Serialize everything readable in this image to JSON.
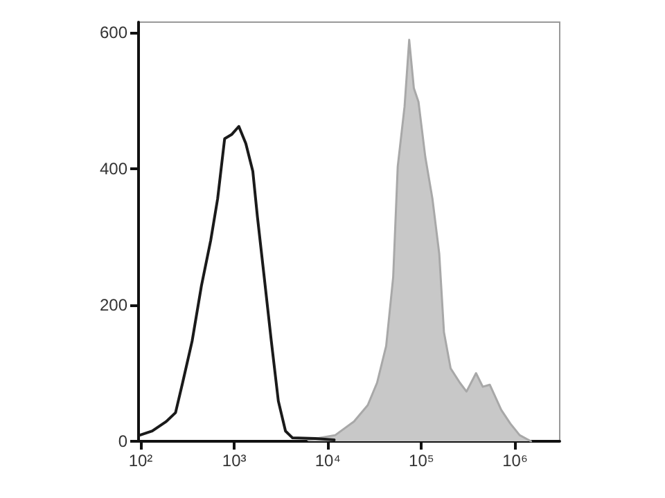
{
  "chart_data": {
    "type": "line",
    "log": "x",
    "grid": false,
    "marker": "none",
    "xlim": [
      95,
      3000000
    ],
    "xticks": [
      {
        "value": 100,
        "label": "10²"
      },
      {
        "value": 1000,
        "label": "10³"
      },
      {
        "value": 10000,
        "label": "10⁴"
      },
      {
        "value": 100000,
        "label": "10⁵"
      },
      {
        "value": 1000000,
        "label": "10⁶"
      }
    ],
    "ylim": [
      0,
      615
    ],
    "yticks": [
      0,
      200,
      400,
      600
    ],
    "series": [
      {
        "color": "#1a1a1a",
        "x": [
          98,
          133,
          188,
          236,
          281,
          355,
          446,
          561,
          665,
          790,
          937,
          1120,
          1330,
          1580,
          1770,
          2090,
          2490,
          2960,
          3530,
          4200,
          7400,
          11700
        ],
        "values": [
          9,
          15,
          29,
          42,
          86,
          147,
          228,
          295,
          356,
          444,
          450,
          462,
          437,
          396,
          329,
          241,
          147,
          59,
          15,
          5,
          4,
          2
        ]
      },
      {
        "type": "area",
        "color": "#c8c8c8",
        "x": [
          6150,
          12000,
          19000,
          26700,
          33600,
          42000,
          49900,
          55800,
          66000,
          74000,
          83000,
          93000,
          110000,
          131000,
          155000,
          174000,
          205000,
          257000,
          303000,
          383000,
          452000,
          537000,
          712000,
          890000,
          1120000,
          1480000
        ],
        "values": [
          2,
          9,
          29,
          53,
          86,
          140,
          241,
          403,
          491,
          589,
          518,
          498,
          417,
          356,
          275,
          160,
          107,
          86,
          73,
          100,
          80,
          83,
          46,
          26,
          9,
          0
        ]
      }
    ]
  }
}
